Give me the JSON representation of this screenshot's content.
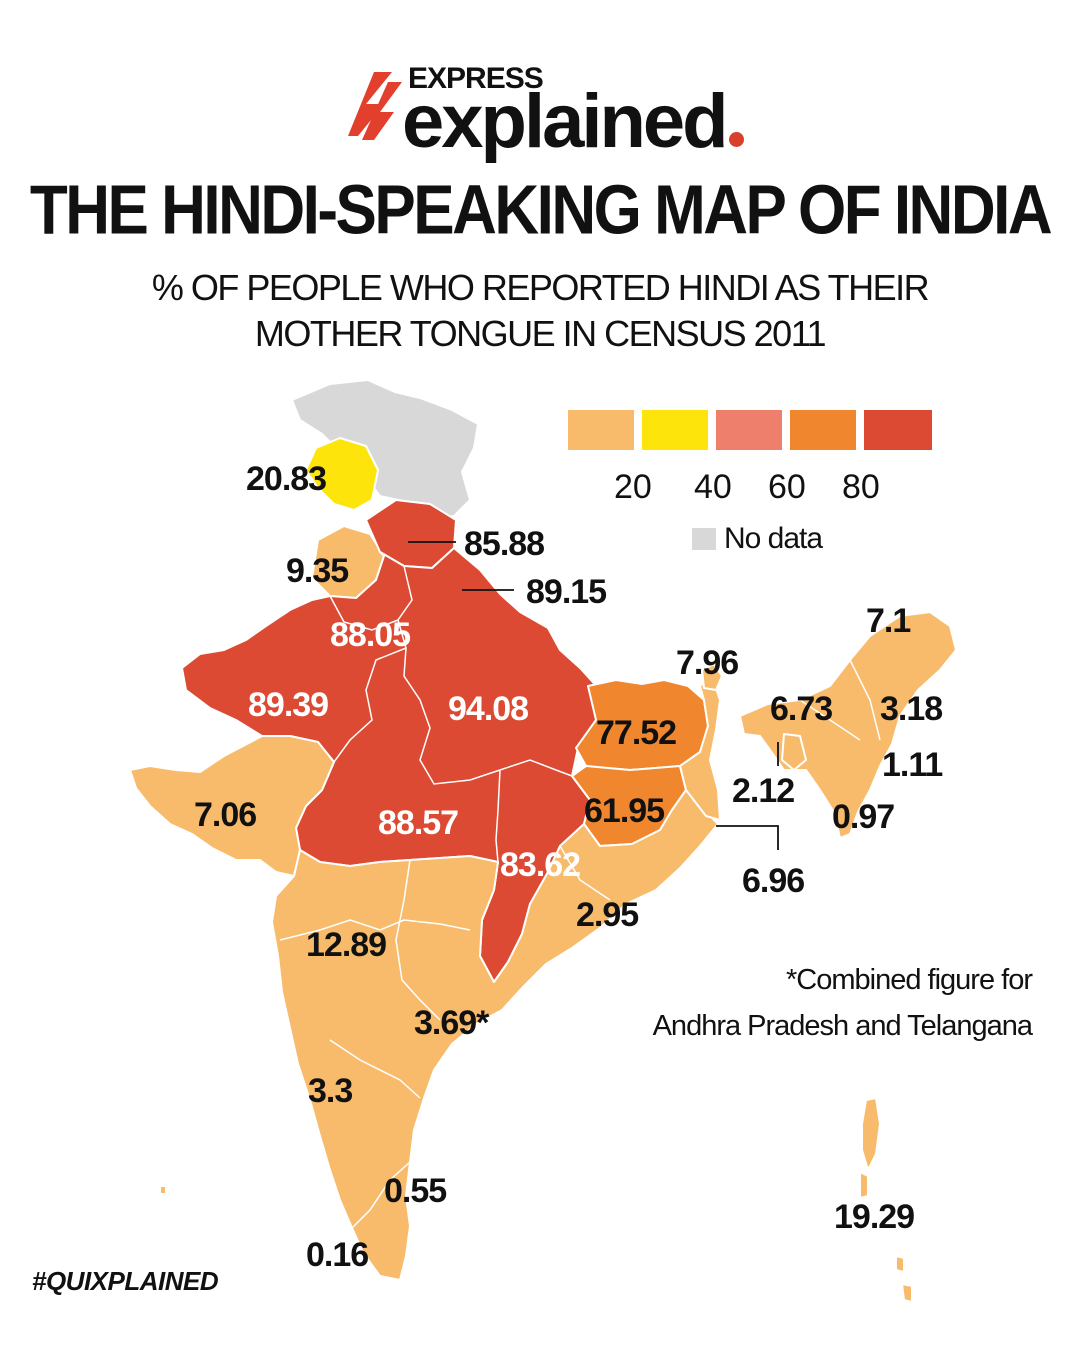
{
  "header": {
    "brand_top": "EXPRESS",
    "brand_main": "explained",
    "title": "THE HINDI-SPEAKING MAP OF INDIA",
    "subtitle_line1": "% OF PEOPLE WHO REPORTED HINDI AS THEIR",
    "subtitle_line2": "MOTHER TONGUE IN CENSUS 2011"
  },
  "legend": {
    "swatch_colors": [
      "#f8bb6b",
      "#fde40a",
      "#ee7f6d",
      "#f0862d",
      "#dc4a33"
    ],
    "labels": [
      "20",
      "40",
      "60",
      "80"
    ],
    "no_data_label": "No data",
    "no_data_color": "#d9d8d8"
  },
  "map": {
    "values": {
      "jammu_kashmir": "20.83",
      "uttarakhand_a": "85.88",
      "himachal_punjab": "9.35",
      "uttarakhand_b": "89.15",
      "haryana": "88.05",
      "rajasthan": "89.39",
      "uttar_pradesh": "94.08",
      "bihar": "77.52",
      "gujarat": "7.06",
      "madhya_pradesh": "88.57",
      "jharkhand": "61.95",
      "chhattisgarh": "83.62",
      "odisha": "2.95",
      "maharashtra": "12.89",
      "andhra_telangana": "3.69*",
      "karnataka": "3.3",
      "tamil_nadu": "0.55",
      "kerala": "0.16",
      "sikkim": "7.96",
      "arunachal": "7.1",
      "meghalaya": "6.73",
      "nagaland": "3.18",
      "manipur": "1.11",
      "tripura": "2.12",
      "mizoram": "0.97",
      "west_bengal": "6.96",
      "andaman_nicobar": "19.29"
    }
  },
  "note": {
    "line1": "*Combined figure for",
    "line2": "Andhra Pradesh and Telangana"
  },
  "hashtag": "#QUIXPLAINED"
}
